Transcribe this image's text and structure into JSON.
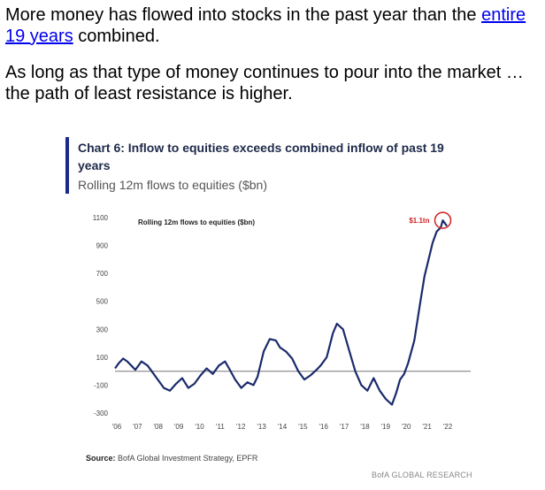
{
  "article": {
    "p1_text_a": "More money has flowed into stocks in the past year than the ",
    "p1_link": "entire 19 years",
    "p1_text_b": " combined.",
    "p2_text": "As long as that type of money continues to pour into the market … the path of least resistance is higher."
  },
  "chart_data": {
    "type": "line",
    "title": "Chart 6: Inflow to equities exceeds combined inflow of past 19 years",
    "subtitle": "Rolling 12m flows to equities ($bn)",
    "legend_label": "Rolling 12m flows to equities ($bn)",
    "annotation": "$1.1tn",
    "source_label": "Source:",
    "source_text": " BofA Global Investment Strategy, EPFR",
    "brand": "BofA GLOBAL RESEARCH",
    "ylim": [
      -300,
      1100
    ],
    "yticks": [
      1100,
      900,
      700,
      500,
      300,
      100,
      -100,
      -300
    ],
    "xlim": [
      2006,
      2022.6
    ],
    "xticks": [
      "'06",
      "'07",
      "'08",
      "'09",
      "'10",
      "'11",
      "'12",
      "'13",
      "'14",
      "'15",
      "'16",
      "'17",
      "'18",
      "'19",
      "'20",
      "'21",
      "'22"
    ],
    "grid": false,
    "colors": {
      "line": "#1a2a6c",
      "zero_line": "#9a9a9a",
      "annotation": "#d22020",
      "accent_bar": "#1a2a8c"
    },
    "series": [
      {
        "x": [
          2006.0,
          2006.2,
          2006.4,
          2006.6,
          2006.8,
          2007.0,
          2007.3,
          2007.6,
          2007.9,
          2008.1,
          2008.4,
          2008.7,
          2009.0,
          2009.3,
          2009.6,
          2009.9,
          2010.2,
          2010.5,
          2010.8,
          2011.1,
          2011.4,
          2011.6,
          2011.9,
          2012.2,
          2012.5,
          2012.8,
          2013.0,
          2013.3,
          2013.6,
          2013.9,
          2014.1,
          2014.4,
          2014.7,
          2015.0,
          2015.3,
          2015.6,
          2015.9,
          2016.1,
          2016.4,
          2016.7,
          2016.9,
          2017.2,
          2017.5,
          2017.8,
          2018.1,
          2018.4,
          2018.7,
          2019.0,
          2019.3,
          2019.6,
          2019.8,
          2020.0,
          2020.2,
          2020.4,
          2020.7,
          2021.0,
          2021.2,
          2021.4,
          2021.6,
          2021.8,
          2022.0,
          2022.1,
          2022.3
        ],
        "values": [
          20,
          60,
          90,
          70,
          40,
          10,
          70,
          40,
          -20,
          -60,
          -120,
          -140,
          -90,
          -50,
          -120,
          -90,
          -30,
          20,
          -20,
          40,
          70,
          20,
          -60,
          -120,
          -80,
          -100,
          -40,
          140,
          230,
          220,
          170,
          140,
          90,
          0,
          -60,
          -30,
          10,
          40,
          100,
          270,
          340,
          300,
          150,
          0,
          -100,
          -140,
          -50,
          -140,
          -200,
          -240,
          -160,
          -60,
          -20,
          60,
          220,
          500,
          680,
          800,
          920,
          1000,
          1030,
          1080,
          1040
        ]
      }
    ]
  }
}
